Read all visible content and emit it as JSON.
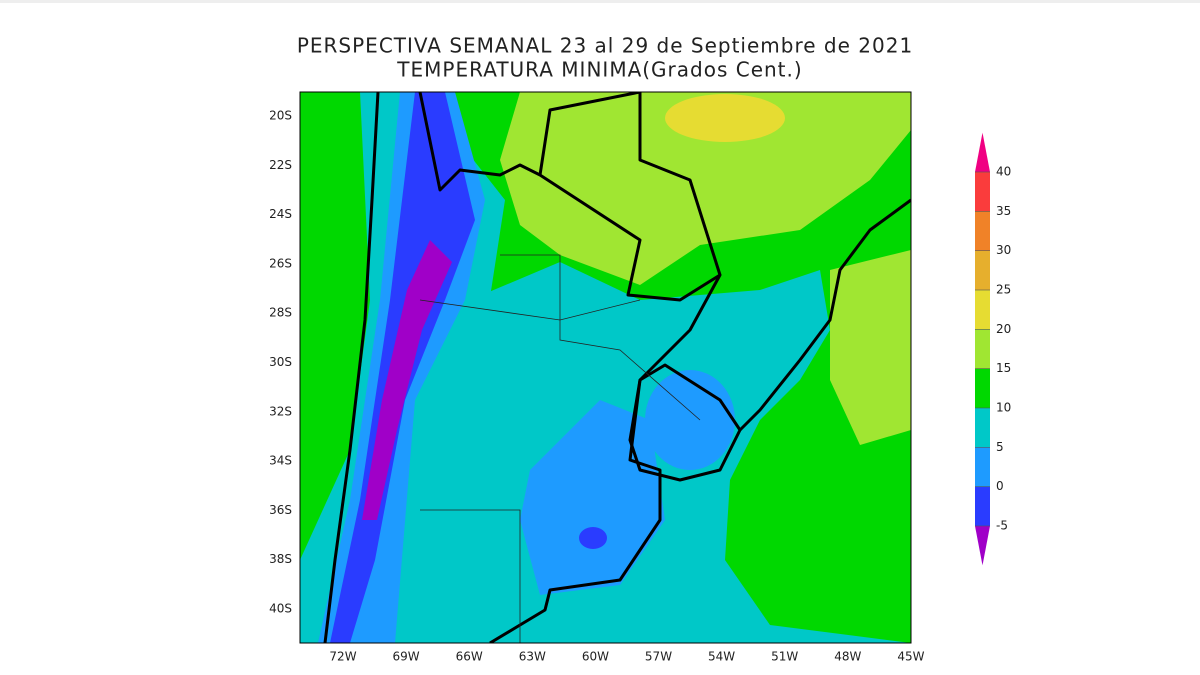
{
  "title": "PERSPECTIVA SEMANAL  23 al 29 de Septiembre de 2021",
  "subtitle": "TEMPERATURA MINIMA(Grados Cent.)",
  "lat_labels": [
    "20S",
    "22S",
    "24S",
    "26S",
    "28S",
    "30S",
    "32S",
    "34S",
    "36S",
    "38S",
    "40S"
  ],
  "lon_labels": [
    "72W",
    "69W",
    "66W",
    "63W",
    "60W",
    "57W",
    "54W",
    "51W",
    "48W",
    "45W"
  ],
  "colorbar": {
    "ticks": [
      -5,
      0,
      5,
      10,
      15,
      20,
      25,
      30,
      35,
      40
    ],
    "colors": [
      "#a000c8",
      "#2a3cff",
      "#1e9bff",
      "#00c8c8",
      "#00d800",
      "#a0e632",
      "#e6dc32",
      "#e6af2d",
      "#f08228",
      "#fa3c3c",
      "#f00082"
    ]
  }
}
